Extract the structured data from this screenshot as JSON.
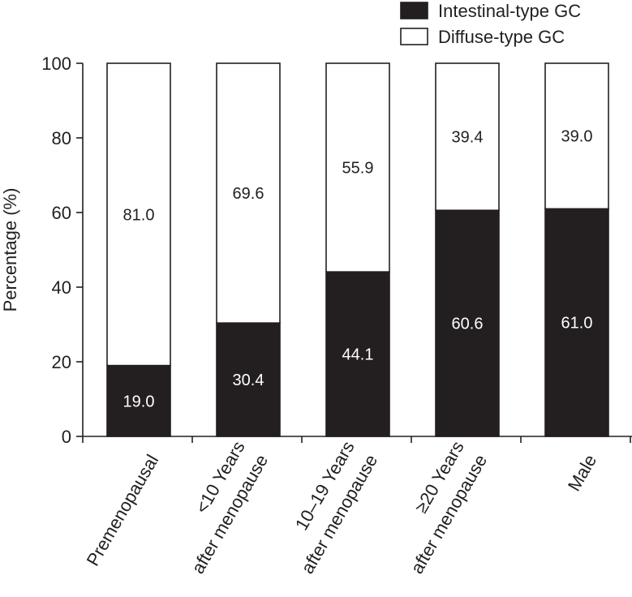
{
  "chart_data": {
    "type": "stacked_bar",
    "ylabel": "Percentage (%)",
    "ylim": [
      0,
      100
    ],
    "yticks": [
      0,
      20,
      40,
      60,
      80,
      100
    ],
    "categories": [
      [
        "Premenopausal"
      ],
      [
        "<10 Years",
        "after menopause"
      ],
      [
        "10–19 Years",
        "after menopause"
      ],
      [
        "≥20 Years",
        "after menopause"
      ],
      [
        "Male"
      ]
    ],
    "series": [
      {
        "name": "Intestinal-type GC",
        "color": "#231f20",
        "label_color": "#ffffff",
        "values": [
          19.0,
          30.4,
          44.1,
          60.6,
          61.0
        ],
        "labels": [
          "19.0",
          "30.4",
          "44.1",
          "60.6",
          "61.0"
        ]
      },
      {
        "name": "Diffuse-type GC",
        "color": "#ffffff",
        "label_color": "#231f20",
        "values": [
          81.0,
          69.6,
          55.9,
          39.4,
          39.0
        ],
        "labels": [
          "81.0",
          "69.6",
          "55.9",
          "39.4",
          "39.0"
        ]
      }
    ],
    "legend": "top-right"
  }
}
